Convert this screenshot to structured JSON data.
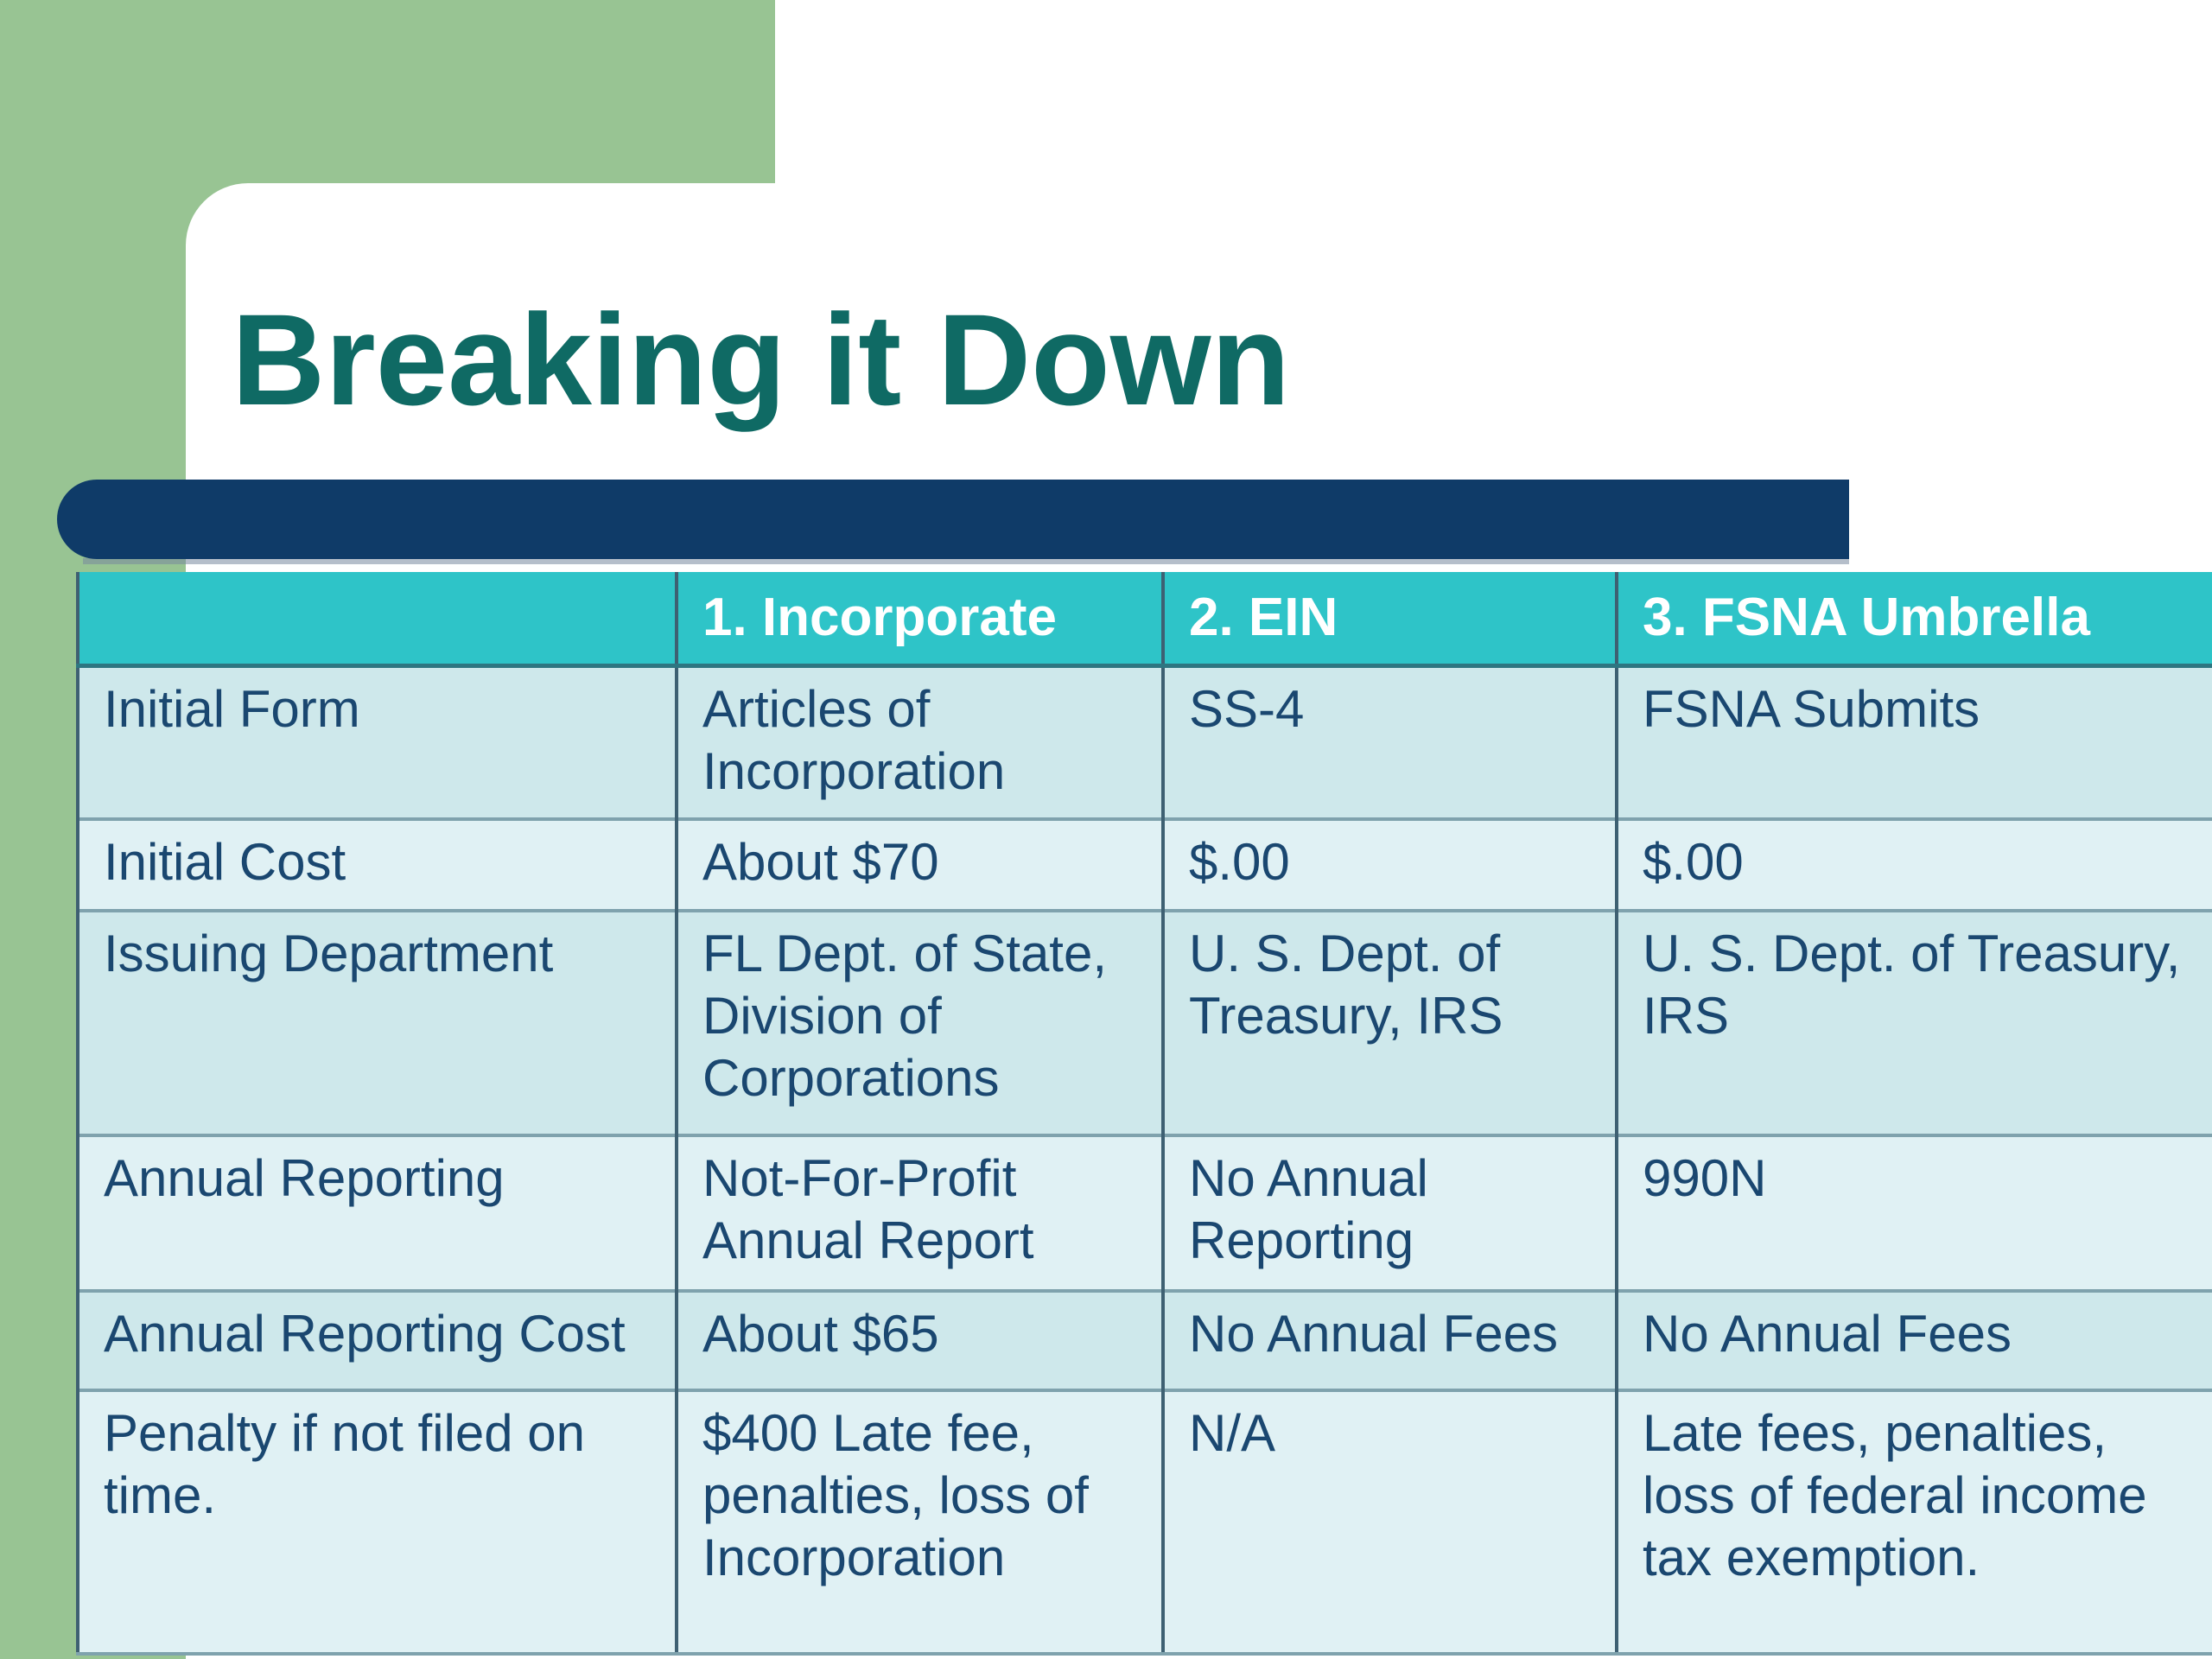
{
  "title": "Breaking it Down",
  "table": {
    "columns": [
      "",
      "1. Incorporate",
      "2. EIN",
      "3. FSNA Umbrella"
    ],
    "rows": [
      [
        "Initial Form",
        "Articles of\nIncorporation",
        "SS-4",
        "FSNA Submits"
      ],
      [
        "Initial Cost",
        "About $70",
        "$.00",
        "$.00"
      ],
      [
        "Issuing Department",
        "FL Dept. of State,\nDivision of\nCorporations",
        "U. S. Dept. of\nTreasury, IRS",
        "U. S. Dept. of Treasury,\nIRS"
      ],
      [
        "Annual Reporting",
        "Not-For-Profit\nAnnual Report",
        "No Annual\nReporting",
        "990N"
      ],
      [
        "Annual Reporting Cost",
        "About $65",
        "No Annual Fees",
        "No Annual Fees"
      ],
      [
        "Penalty if not filed on\ntime.",
        "$400 Late fee,\npenalties, loss of\nIncorporation",
        "N/A",
        "Late fees, penalties,\nloss of federal income\ntax exemption."
      ]
    ]
  },
  "colors": {
    "sidebar_green": "#98C493",
    "accent_navy": "#0F3B68",
    "header_teal": "#2EC4C8",
    "row_dark": "#CEE8EB",
    "row_light": "#E0F1F4",
    "title_text": "#0F6A64",
    "cell_text": "#1A4770",
    "header_text": "#FFFFFF",
    "vertical_border": "#3E6072",
    "horizontal_border": "#7FA2AD",
    "header_underline": "#2E7681"
  }
}
